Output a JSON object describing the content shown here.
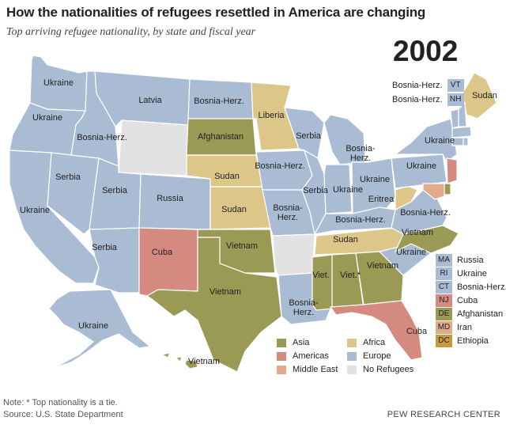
{
  "title": "How the nationalities of refugees resettled in America are changing",
  "subtitle": "Top arriving refugee nationality, by state and fiscal year",
  "year": "2002",
  "colors": {
    "asia": "#9a9a55",
    "americas": "#d48a7f",
    "middle_east": "#e1aa8a",
    "africa": "#dcc688",
    "europe": "#a9bcd4",
    "none": "#e2e2e2",
    "ethiopia": "#c99a3c",
    "border": "#ffffff"
  },
  "states": {
    "WA": {
      "label": "Ukraine",
      "region": "europe"
    },
    "OR": {
      "label": "Ukraine",
      "region": "europe"
    },
    "CA": {
      "label": "Ukraine",
      "region": "europe"
    },
    "NV": {
      "label": "Serbia",
      "region": "europe"
    },
    "ID": {
      "label": "Bosnia-Herz.",
      "region": "europe"
    },
    "MT": {
      "label": "Latvia",
      "region": "europe"
    },
    "WY": {
      "label": "",
      "region": "none"
    },
    "UT": {
      "label": "Serbia",
      "region": "europe"
    },
    "CO": {
      "label": "Russia",
      "region": "europe"
    },
    "AZ": {
      "label": "Serbia",
      "region": "europe"
    },
    "NM": {
      "label": "Cuba",
      "region": "americas"
    },
    "ND": {
      "label": "Bosnia-Herz.",
      "region": "europe"
    },
    "SD": {
      "label": "Afghanistan",
      "region": "asia"
    },
    "NE": {
      "label": "Sudan",
      "region": "africa"
    },
    "KS": {
      "label": "Sudan",
      "region": "africa"
    },
    "OK": {
      "label": "Vietnam",
      "region": "asia"
    },
    "TX": {
      "label": "Vietnam",
      "region": "asia"
    },
    "MN": {
      "label": "Liberia",
      "region": "africa"
    },
    "IA": {
      "label": "Bosnia-Herz.",
      "region": "europe"
    },
    "MO": {
      "label": "Bosnia-Herz.",
      "region": "europe"
    },
    "AR": {
      "label": "",
      "region": "none"
    },
    "LA": {
      "label": "Bosnia-Herz.",
      "region": "europe"
    },
    "WI": {
      "label": "Serbia",
      "region": "europe"
    },
    "IL": {
      "label": "Serbia",
      "region": "europe"
    },
    "MI": {
      "label": "Bosnia-Herz.",
      "region": "europe"
    },
    "IN": {
      "label": "Ukraine",
      "region": "europe"
    },
    "OH": {
      "label": "Ukraine",
      "region": "europe"
    },
    "KY": {
      "label": "Bosnia-Herz.",
      "region": "europe"
    },
    "TN": {
      "label": "Sudan",
      "region": "africa"
    },
    "MS": {
      "label": "Viet.",
      "region": "asia"
    },
    "AL": {
      "label": "Viet.*",
      "region": "asia"
    },
    "GA": {
      "label": "Vietnam",
      "region": "asia"
    },
    "FL": {
      "label": "Cuba",
      "region": "americas"
    },
    "SC": {
      "label": "Ukraine",
      "region": "europe"
    },
    "NC": {
      "label": "Vietnam",
      "region": "asia"
    },
    "VA": {
      "label": "Bosnia-Herz.",
      "region": "europe"
    },
    "WV": {
      "label": "Eritrea",
      "region": "africa"
    },
    "PA": {
      "label": "Ukraine",
      "region": "europe"
    },
    "NY": {
      "label": "Ukraine",
      "region": "europe"
    },
    "ME": {
      "label": "Sudan",
      "region": "africa"
    },
    "NJ": {
      "label": "",
      "region": "americas"
    },
    "DE": {
      "label": "",
      "region": "asia"
    },
    "MD": {
      "label": "",
      "region": "middle_east"
    },
    "AK": {
      "label": "Ukraine",
      "region": "europe"
    },
    "HI": {
      "label": "Vietnam",
      "region": "asia"
    }
  },
  "northeast": [
    {
      "abbr": "VT",
      "country": "Bosnia-Herz.",
      "region": "europe"
    },
    {
      "abbr": "NH",
      "country": "Bosnia-Herz.",
      "region": "europe"
    }
  ],
  "small_states": [
    {
      "abbr": "MA",
      "country": "Russia",
      "region": "europe"
    },
    {
      "abbr": "RI",
      "country": "Ukraine",
      "region": "europe"
    },
    {
      "abbr": "CT",
      "country": "Bosnia-Herz.",
      "region": "europe"
    },
    {
      "abbr": "NJ",
      "country": "Cuba",
      "region": "americas"
    },
    {
      "abbr": "DE",
      "country": "Afghanistan",
      "region": "asia"
    },
    {
      "abbr": "MD",
      "country": "Iran",
      "region": "middle_east"
    },
    {
      "abbr": "DC",
      "country": "Ethiopia",
      "region": "ethiopia"
    }
  ],
  "legend": [
    {
      "label": "Asia",
      "region": "asia"
    },
    {
      "label": "Africa",
      "region": "africa"
    },
    {
      "label": "Americas",
      "region": "americas"
    },
    {
      "label": "Europe",
      "region": "europe"
    },
    {
      "label": "Middle East",
      "region": "middle_east"
    },
    {
      "label": "No Refugees",
      "region": "none"
    }
  ],
  "note": "Note: * Top nationality is a tie.",
  "source": "Source: U.S. State Department",
  "brand": "PEW RESEARCH CENTER"
}
